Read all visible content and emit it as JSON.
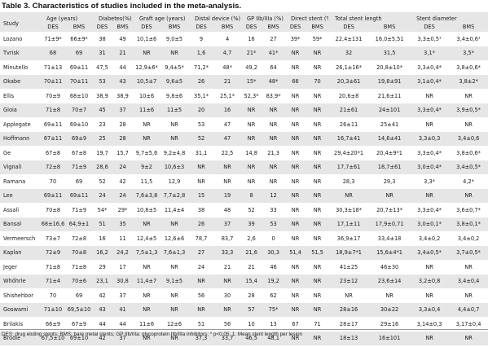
{
  "title": "Table 3. Characteristics of studies included in the meta-analysis.",
  "headers": {
    "study": "Study",
    "groups": [
      "Age (years)",
      "Diabetes(%)",
      "Graft age (years)",
      "Distal device (%)",
      "GP IIb/IIIa (%)",
      "Direct stent (%)",
      "Total stent length",
      "Stent diameter"
    ],
    "sub": [
      "DES",
      "BMS"
    ]
  },
  "rows": [
    [
      "Lozano",
      "71±9*",
      "66±9*",
      "38",
      "49",
      "10,1±6",
      "9,0±5",
      "9",
      "4",
      "16",
      "27",
      "39*",
      "59*",
      "22,4±131",
      "16,0±5,51",
      "3,3±0,5¹",
      "3,4±0,6¹"
    ],
    [
      "Tvrisk",
      "68",
      "69",
      "31",
      "21",
      "NR",
      "NR",
      "1,6",
      "4,7",
      "21*",
      "41*",
      "NR",
      "NR",
      "32",
      "31,5",
      "3,1*",
      "3,5*"
    ],
    [
      "Minutello",
      "71±13",
      "69±11",
      "47,5",
      "44",
      "12,9±6*",
      "9,4±5*",
      "71,2*",
      "48*",
      "49,2",
      "64",
      "NR",
      "NR",
      "26,1±16*",
      "20,8±10*",
      "3,3±0,4*",
      "3,8±0,6*"
    ],
    [
      "Okabe",
      "70±11",
      "70±11",
      "53",
      "43",
      "10,5±7",
      "9,6±5",
      "26",
      "21",
      "15*",
      "48*",
      "66",
      "70",
      "20,3±61",
      "19,8±91",
      "3,1±0,4*",
      "3,8±2*"
    ],
    [
      "Ellis",
      "70±9",
      "68±10",
      "38,9",
      "38,9",
      "10±6",
      "9,8±6",
      "35,1*",
      "25,1*",
      "52,3*",
      "83,9*",
      "NR",
      "NR",
      "20,6±8",
      "21,6±11",
      "NR",
      "NR"
    ],
    [
      "Gioia",
      "71±8",
      "70±7",
      "45",
      "37",
      "11±6",
      "11±5",
      "20",
      "16",
      "NR",
      "NR",
      "NR",
      "NR",
      "21±61",
      "24±101",
      "3,3±0,4*",
      "3,9±0,5*"
    ],
    [
      "Applegate",
      "69±11",
      "69±10",
      "23",
      "28",
      "NR",
      "NR",
      "53",
      "47",
      "NR",
      "NR",
      "NR",
      "NR",
      "26±11",
      "25±41",
      "NR",
      "NR"
    ],
    [
      "Hoffmann",
      "67±11",
      "69±9",
      "25",
      "28",
      "NR",
      "NR",
      "52",
      "47",
      "NR",
      "NR",
      "NR",
      "NR",
      "16,7±41",
      "14,6±41",
      "3,3±0,3",
      "3,4±0,6"
    ],
    [
      "Ge",
      "67±8",
      "67±8",
      "19,7",
      "15,7",
      "9,7±5,6",
      "9,2±4,8",
      "31,1",
      "22,5",
      "14,8",
      "21,3",
      "NR",
      "NR",
      "29,4±20*1",
      "20,4±9*1",
      "3,3±0,4*",
      "3,8±0,6*"
    ],
    [
      "Vignali",
      "72±8",
      "71±9",
      "28,6",
      "24",
      "9±2",
      "10,6±3",
      "NR",
      "NR",
      "NR",
      "NR",
      "NR",
      "NR",
      "17,7±61",
      "18,7±61",
      "3,0±0,4*",
      "3,4±0,5*"
    ],
    [
      "Ramana",
      "70",
      "69",
      "52",
      "42",
      "11,5",
      "12,9",
      "NR",
      "NR",
      "NR",
      "NR",
      "NR",
      "NR",
      "28,3",
      "29,3",
      "3,3*",
      "4,2*"
    ],
    [
      "Lee",
      "69±11",
      "69±11",
      "24",
      "24",
      "7,6±3,8",
      "7,7±2,8",
      "15",
      "19",
      "8",
      "12",
      "NR",
      "NR",
      "NR",
      "NR",
      "NR",
      "NR"
    ],
    [
      "Assali",
      "70±8",
      "71±9",
      "54*",
      "29*",
      "10,8±5",
      "11,4±4",
      "38",
      "48",
      "52",
      "33",
      "NR",
      "NR",
      "30,3±18*",
      "20,7±13*",
      "3,3±0,4*",
      "3,6±0,7*"
    ],
    [
      "Bansal",
      "68±16,6",
      "64,9±1",
      "51",
      "35",
      "NR",
      "NR",
      "26",
      "37",
      "39",
      "53",
      "NR",
      "NR",
      "17,1±11",
      "17,9±0,71",
      "3,0±0,1*",
      "3,8±0,1*"
    ],
    [
      "Vermeersch",
      "73±7",
      "72±8",
      "16",
      "11",
      "12,4±5",
      "12,6±6",
      "78,7",
      "83,7",
      "2,6",
      "0",
      "NR",
      "NR",
      "36,9±17",
      "33,4±18",
      "3,4±0,2",
      "3,4±0,2"
    ],
    [
      "Kaplan",
      "72±9",
      "70±8",
      "16,2",
      "24,2",
      "7,5±1,3",
      "7,6±1,3",
      "27",
      "33,3",
      "21,6",
      "30,3",
      "51,4",
      "51,5",
      "18,9±7*1",
      "15,6±4*1",
      "3,4±0,5*",
      "3,7±0,5*"
    ],
    [
      "Jeger",
      "71±8",
      "71±8",
      "29",
      "17",
      "NR",
      "NR",
      "24",
      "21",
      "21",
      "46",
      "NR",
      "NR",
      "41±25",
      "46±30",
      "NR",
      "NR"
    ],
    [
      "Whöhrle",
      "71±4",
      "70±6",
      "23,1",
      "30,8",
      "11,4±7",
      "9,1±5",
      "NR",
      "NR",
      "15,4",
      "19,2",
      "NR",
      "NR",
      "23±12",
      "23,6±14",
      "3,2±0,8",
      "3,4±0,4"
    ],
    [
      "Shishehbor",
      "70",
      "69",
      "42",
      "37",
      "NR",
      "NR",
      "56",
      "30",
      "28",
      "62",
      "NR",
      "NR",
      "NR",
      "NR",
      "NR",
      "NR"
    ],
    [
      "Goswami",
      "71±10",
      "69,5±10",
      "43",
      "41",
      "NR",
      "NR",
      "NR",
      "NR",
      "57",
      "75*",
      "NR",
      "NR",
      "28±16",
      "30±22",
      "3,3±0,4",
      "4,4±0,7"
    ],
    [
      "Brilakis",
      "66±9",
      "67±9",
      "44",
      "44",
      "11±6",
      "12±6",
      "51",
      "56",
      "10",
      "13",
      "67",
      "71",
      "28±17",
      "29±16",
      "3,14±0,3",
      "3,17±0,4"
    ],
    [
      "Brodie",
      "67,5±10",
      "69±10",
      "42",
      "37",
      "NR",
      "NR",
      "37,3",
      "33,7",
      "46,5",
      "48,1",
      "NR",
      "NR",
      "18±13",
      "16±101",
      "NR",
      "NR"
    ]
  ],
  "footnote": "DES: drug eluting stents; BMS: bare metal stents; GP IIb/IIIa: glycoprotein IIb/IIIa inhibitors; * p<0,05; 1. Mean stent length per lesion"
}
